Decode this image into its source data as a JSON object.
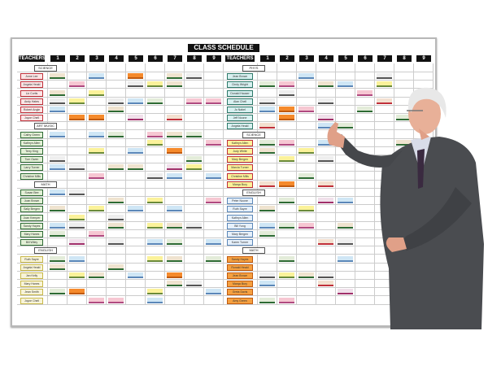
{
  "board": {
    "title": "CLASS SCHEDULE",
    "teachers_label": "TEACHERS",
    "periods": [
      "1",
      "2",
      "3",
      "4",
      "5",
      "6",
      "7",
      "8",
      "9"
    ]
  },
  "colors": {
    "b": [
      "#cfe6f5",
      "#5b87b8"
    ],
    "g": [
      "#e3ecd9",
      "#2e6b34"
    ],
    "o": [
      "#f58a2c",
      "#c05a10"
    ],
    "y": [
      "#fbf29a",
      "#6a8a3a"
    ],
    "p": [
      "#f6c7d2",
      "#b04a80"
    ],
    "r": [
      "#f3e0d0",
      "#c0303a"
    ],
    "w": [
      "#eeeeee",
      "#555555"
    ],
    "m": [
      "#f0e0ea",
      "#a0306a"
    ],
    "t": [
      "#efe3cf",
      "#2e6b34"
    ]
  },
  "left": [
    {
      "section": "SCIENCE",
      "label_color": "#c0303a",
      "label_fill": "#fbe6e6",
      "teachers": [
        {
          "name": "Anne Lee",
          "cards": "t.b.o.tw."
        },
        {
          "name": "Angela Heald",
          "cards": ".p..wyt.."
        },
        {
          "name": "Liz Curtis",
          "cards": "t.y......"
        },
        {
          "name": "Andy Hates",
          "cards": "wy.wbg.pp"
        },
        {
          "name": "Robert Angle",
          "cards": "b..t....."
        },
        {
          "name": "Joyce Chell",
          "cards": ".oo.m.r.."
        }
      ]
    },
    {
      "section": "ART MUSIC",
      "label_color": "#2e6b34",
      "label_fill": "#e3f0d6",
      "teachers": [
        {
          "name": "Cathy Green",
          "cards": "b.bg.ptg."
        },
        {
          "name": "Kathryn Allen",
          "cards": ".....y..p"
        },
        {
          "name": "Terry King",
          "cards": "..y.b.o.."
        },
        {
          "name": "Tom Owen",
          "cards": "w......g."
        },
        {
          "name": "Larry Turner",
          "cards": "bw.tt.my."
        },
        {
          "name": "Christine Mills",
          "cards": "..p..wb.b"
        }
      ]
    },
    {
      "section": "MATH",
      "label_color": "#2e6b34",
      "label_fill": "#e3f0d6",
      "teachers": [
        {
          "name": "Susan Bee",
          "cards": "bw......."
        },
        {
          "name": "Joan Brown",
          "cards": "...t.y..p"
        },
        {
          "name": "Sally Bergen",
          "cards": "t.y.b.b.."
        },
        {
          "name": "Joan Kemper",
          "cards": ".y.w....."
        },
        {
          "name": "Sandy Hayes",
          "cards": "bw.t.ytw."
        },
        {
          "name": "Mary Hanes",
          "cards": "g.p......"
        },
        {
          "name": "Bill Wiley",
          "cards": ".m.w.bg.b"
        }
      ]
    },
    {
      "section": "ENGLISH",
      "label_color": "#c8b84a",
      "label_fill": "#f8f4d8",
      "teachers": [
        {
          "name": "Ruth Sayre",
          "cards": "gb...yt.g"
        },
        {
          "name": "Angela Heald",
          "cards": "t..t....."
        },
        {
          "name": "Jan Kelly",
          "cards": ".yt.b.o.."
        },
        {
          "name": "Mary Hanes",
          "cards": "......tw."
        },
        {
          "name": "Jean Smith",
          "cards": "go...y..b"
        },
        {
          "name": "Joyce Chell",
          "cards": "..pp.b..."
        }
      ]
    }
  ],
  "right": [
    {
      "section": "PHYS",
      "label_color": "#2e7a6a",
      "label_fill": "#d8f0f0",
      "teachers": [
        {
          "name": "Jean Brown",
          "cards": "..b...w.."
        },
        {
          "name": "Cindy Wright",
          "cards": "gp.tb.y.."
        },
        {
          "name": "Donald Hauser",
          "cards": ".w...p..."
        },
        {
          "name": "Alan Chell",
          "cards": "w..w..r.b"
        },
        {
          "name": "Jo Nabel",
          "cards": "bop..g..."
        },
        {
          "name": "Jeff Noone",
          "cards": ".o.m...g."
        },
        {
          "name": "Angela Heald",
          "cards": "r..bg...."
        }
      ]
    },
    {
      "section": "SCIENCE",
      "label_color": "#c0303a",
      "label_fill": "#fbf29a",
      "teachers": [
        {
          "name": "Kathryn Allen",
          "cards": "gp.b...t."
        },
        {
          "name": "Judy White",
          "cards": "t.y......"
        },
        {
          "name": "Mary Bergen",
          "cards": ".y.w....."
        },
        {
          "name": "Marcia Turner",
          "cards": "........."
        },
        {
          "name": "Christine Mills",
          "cards": "..g......"
        },
        {
          "name": "Marqa Bury",
          "cards": "ro.r....."
        }
      ]
    },
    {
      "section": "ENGLISH",
      "label_color": "#5b87b8",
      "label_fill": "#e6f0fa",
      "teachers": [
        {
          "name": "Peter Noone",
          "cards": ".g.mb...."
        },
        {
          "name": "Ruth Sayre",
          "cards": "t.y......"
        },
        {
          "name": "Kathryn Allen",
          "cards": "........."
        },
        {
          "name": "Bill Yung",
          "cards": "bgp.t...."
        },
        {
          "name": "Mary Bergen",
          "cards": "g........"
        },
        {
          "name": "Karen Turner",
          "cards": "...rw...."
        }
      ]
    },
    {
      "section": "MATH",
      "label_color": "#c05a10",
      "label_fill": "#f5a040",
      "teachers": [
        {
          "name": "Sandy Hayes",
          "cards": ".g..b...."
        },
        {
          "name": "Ronald Heald",
          "cards": "........."
        },
        {
          "name": "Jean Brown",
          "cards": "wytw....."
        },
        {
          "name": "Marqa Bury",
          "cards": "b..r....."
        },
        {
          "name": "Greta Davis",
          "cards": "....m...."
        },
        {
          "name": "Amy Green",
          "cards": "gp......."
        }
      ]
    }
  ]
}
